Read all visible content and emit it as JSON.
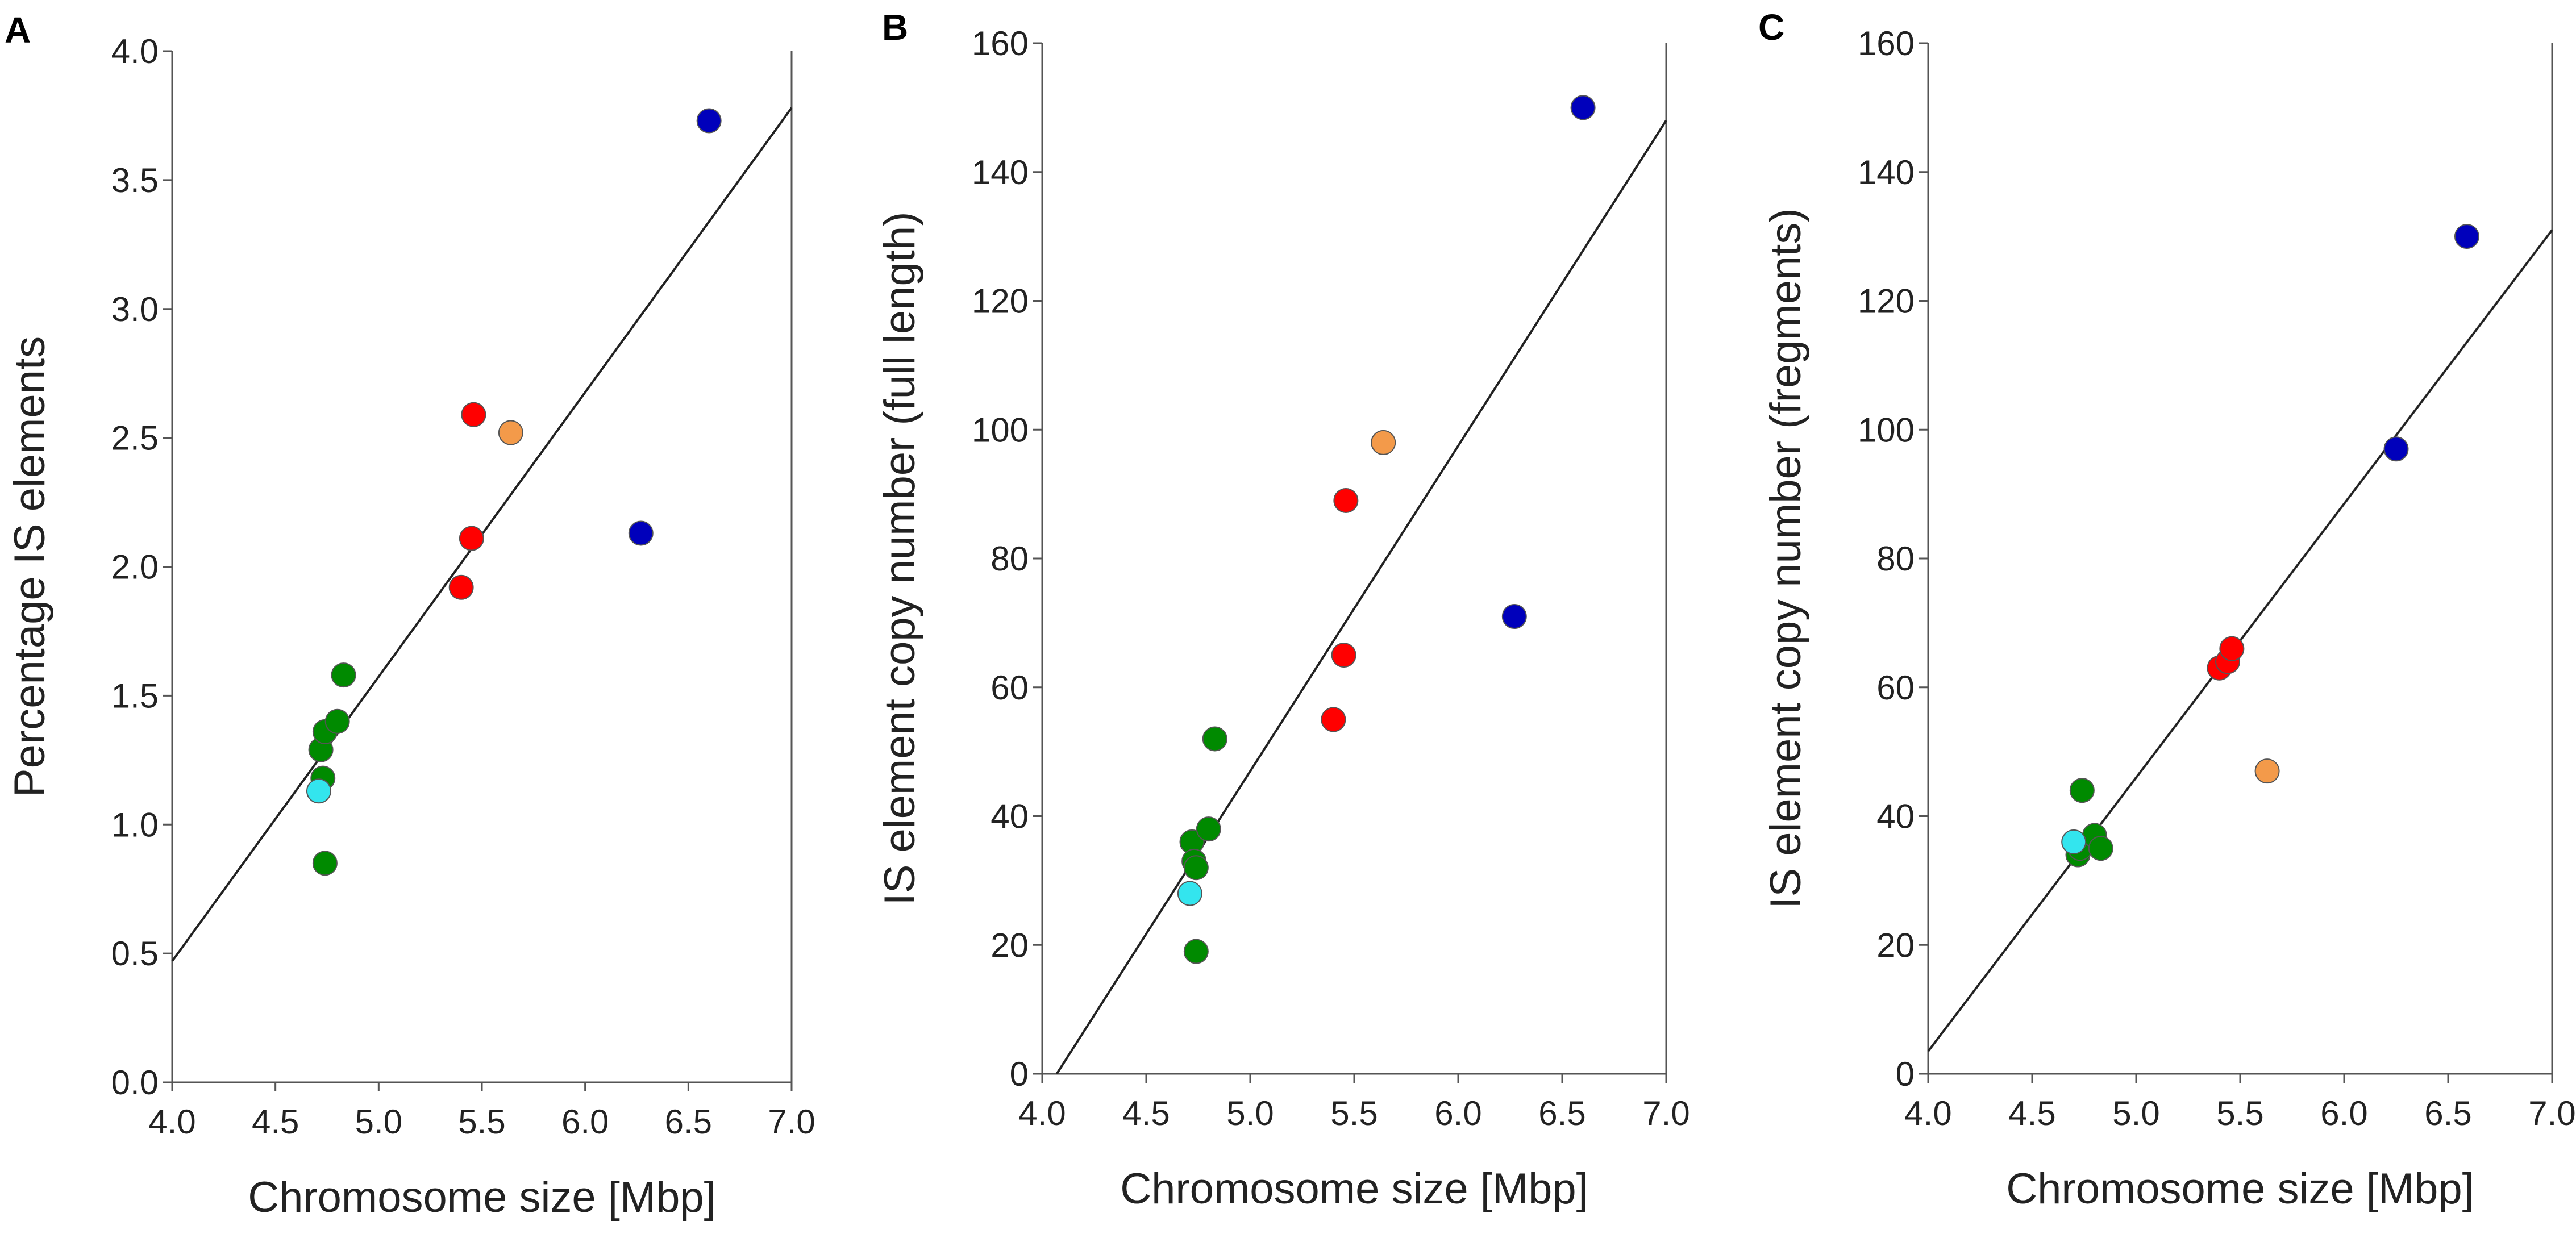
{
  "colors": {
    "green": "#008a00",
    "cyan": "#33e5ee",
    "red": "#ff0000",
    "orange": "#f39a4a",
    "blue": "#0000bb"
  },
  "chart_data": [
    {
      "type": "scatter",
      "panel_label": "A",
      "xlabel": "Chromosome size [Mbp]",
      "ylabel": "Percentage IS elements",
      "xlim": [
        4.0,
        7.0
      ],
      "ylim": [
        0.0,
        4.0
      ],
      "xticks": [
        4.0,
        4.5,
        5.0,
        5.5,
        6.0,
        6.5,
        7.0
      ],
      "xtick_labels": [
        "4.0",
        "4.5",
        "5.0",
        "5.5",
        "6.0",
        "6.5",
        "7.0"
      ],
      "yticks": [
        0.0,
        0.5,
        1.0,
        1.5,
        2.0,
        2.5,
        3.0,
        3.5,
        4.0
      ],
      "ytick_labels": [
        "0.0",
        "0.5",
        "1.0",
        "1.5",
        "2.0",
        "2.5",
        "3.0",
        "3.5",
        "4.0"
      ],
      "trendline": {
        "x": [
          4.0,
          7.0
        ],
        "y": [
          0.47,
          3.78
        ]
      },
      "points": [
        {
          "x": 4.72,
          "y": 1.29,
          "color": "green"
        },
        {
          "x": 4.73,
          "y": 1.18,
          "color": "green"
        },
        {
          "x": 4.74,
          "y": 1.36,
          "color": "green"
        },
        {
          "x": 4.74,
          "y": 0.85,
          "color": "green"
        },
        {
          "x": 4.8,
          "y": 1.4,
          "color": "green"
        },
        {
          "x": 4.83,
          "y": 1.58,
          "color": "green"
        },
        {
          "x": 4.71,
          "y": 1.13,
          "color": "cyan"
        },
        {
          "x": 5.4,
          "y": 1.92,
          "color": "red"
        },
        {
          "x": 5.45,
          "y": 2.11,
          "color": "red"
        },
        {
          "x": 5.46,
          "y": 2.59,
          "color": "red"
        },
        {
          "x": 5.64,
          "y": 2.52,
          "color": "orange"
        },
        {
          "x": 6.27,
          "y": 2.13,
          "color": "blue"
        },
        {
          "x": 6.6,
          "y": 3.73,
          "color": "blue"
        }
      ]
    },
    {
      "type": "scatter",
      "panel_label": "B",
      "xlabel": "Chromosome size [Mbp]",
      "ylabel": "IS element copy number (full length)",
      "xlim": [
        4.0,
        7.0
      ],
      "ylim": [
        0,
        160
      ],
      "xticks": [
        4.0,
        4.5,
        5.0,
        5.5,
        6.0,
        6.5,
        7.0
      ],
      "xtick_labels": [
        "4.0",
        "4.5",
        "5.0",
        "5.5",
        "6.0",
        "6.5",
        "7.0"
      ],
      "yticks": [
        0,
        20,
        40,
        60,
        80,
        100,
        120,
        140,
        160
      ],
      "ytick_labels": [
        "0",
        "20",
        "40",
        "60",
        "80",
        "100",
        "120",
        "140",
        "160"
      ],
      "trendline": {
        "x": [
          4.07,
          7.0
        ],
        "y": [
          0,
          148
        ]
      },
      "points": [
        {
          "x": 4.72,
          "y": 36,
          "color": "green"
        },
        {
          "x": 4.73,
          "y": 33,
          "color": "green"
        },
        {
          "x": 4.74,
          "y": 32,
          "color": "green"
        },
        {
          "x": 4.74,
          "y": 19,
          "color": "green"
        },
        {
          "x": 4.8,
          "y": 38,
          "color": "green"
        },
        {
          "x": 4.83,
          "y": 52,
          "color": "green"
        },
        {
          "x": 4.71,
          "y": 28,
          "color": "cyan"
        },
        {
          "x": 5.4,
          "y": 55,
          "color": "red"
        },
        {
          "x": 5.45,
          "y": 65,
          "color": "red"
        },
        {
          "x": 5.46,
          "y": 89,
          "color": "red"
        },
        {
          "x": 5.64,
          "y": 98,
          "color": "orange"
        },
        {
          "x": 6.27,
          "y": 71,
          "color": "blue"
        },
        {
          "x": 6.6,
          "y": 150,
          "color": "blue"
        }
      ]
    },
    {
      "type": "scatter",
      "panel_label": "C",
      "xlabel": "Chromosome size [Mbp]",
      "ylabel": "IS element copy number (fregments)",
      "xlim": [
        4.0,
        7.0
      ],
      "ylim": [
        0,
        160
      ],
      "xticks": [
        4.0,
        4.5,
        5.0,
        5.5,
        6.0,
        6.5,
        7.0
      ],
      "xtick_labels": [
        "4.0",
        "4.5",
        "5.0",
        "5.5",
        "6.0",
        "6.5",
        "7.0"
      ],
      "yticks": [
        0,
        20,
        40,
        60,
        80,
        100,
        120,
        140,
        160
      ],
      "ytick_labels": [
        "0",
        "20",
        "40",
        "60",
        "80",
        "100",
        "120",
        "140",
        "160"
      ],
      "trendline": {
        "x": [
          4.0,
          7.0
        ],
        "y": [
          3.5,
          131
        ]
      },
      "points": [
        {
          "x": 4.72,
          "y": 34,
          "color": "green"
        },
        {
          "x": 4.73,
          "y": 35,
          "color": "green"
        },
        {
          "x": 4.74,
          "y": 44,
          "color": "green"
        },
        {
          "x": 4.8,
          "y": 37,
          "color": "green"
        },
        {
          "x": 4.83,
          "y": 35,
          "color": "green"
        },
        {
          "x": 4.7,
          "y": 36,
          "color": "cyan"
        },
        {
          "x": 5.4,
          "y": 63,
          "color": "red"
        },
        {
          "x": 5.44,
          "y": 64,
          "color": "red"
        },
        {
          "x": 5.46,
          "y": 66,
          "color": "red"
        },
        {
          "x": 5.63,
          "y": 47,
          "color": "orange"
        },
        {
          "x": 6.25,
          "y": 97,
          "color": "blue"
        },
        {
          "x": 6.59,
          "y": 130,
          "color": "blue"
        }
      ]
    }
  ]
}
